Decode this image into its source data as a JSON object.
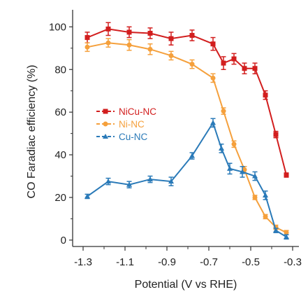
{
  "chart_data": {
    "type": "line",
    "title": "",
    "xlabel": "Potential (V vs RHE)",
    "ylabel": "CO Faradiac efficiency (%)",
    "xlim": [
      -1.35,
      -0.27
    ],
    "ylim": [
      -3,
      108
    ],
    "x_ticks": [
      -1.3,
      -1.1,
      -0.9,
      -0.7,
      -0.5,
      -0.3
    ],
    "x_tick_labels": [
      "-1.3",
      "-1.1",
      "-0.9",
      "-0.7",
      "-0.5",
      "-0.3"
    ],
    "y_ticks": [
      0,
      20,
      40,
      60,
      80,
      100
    ],
    "y_tick_labels": [
      "0",
      "20",
      "40",
      "60",
      "80",
      "100"
    ],
    "legend_position": "center-left",
    "series": [
      {
        "name": "NiCu-NC",
        "color": "#d21e1e",
        "marker": "square",
        "x": [
          -1.28,
          -1.18,
          -1.08,
          -0.98,
          -0.88,
          -0.78,
          -0.68,
          -0.63,
          -0.58,
          -0.53,
          -0.48,
          -0.43,
          -0.38,
          -0.33
        ],
        "y": [
          95,
          99,
          97.5,
          97,
          94.5,
          96,
          92,
          83,
          85,
          80.5,
          80.5,
          68,
          49.5,
          30.5
        ],
        "error": [
          2.5,
          3,
          2.5,
          2.5,
          3,
          2.5,
          3,
          3,
          2.5,
          2.5,
          2.5,
          2,
          1.5,
          1
        ]
      },
      {
        "name": "Ni-NC",
        "color": "#f5a03c",
        "marker": "circle",
        "x": [
          -1.28,
          -1.18,
          -1.08,
          -0.98,
          -0.88,
          -0.78,
          -0.68,
          -0.63,
          -0.58,
          -0.53,
          -0.48,
          -0.43,
          -0.38,
          -0.33
        ],
        "y": [
          90.5,
          92.5,
          91.5,
          89.5,
          86.5,
          82.5,
          76,
          60.5,
          45,
          33,
          20,
          11,
          6,
          3.5
        ],
        "error": [
          2,
          2,
          2.5,
          2.5,
          2,
          2,
          2,
          1.5,
          1.5,
          1.5,
          1,
          1,
          1,
          1
        ]
      },
      {
        "name": "Cu-NC",
        "color": "#2a7ab8",
        "marker": "triangle",
        "x": [
          -1.28,
          -1.18,
          -1.08,
          -0.98,
          -0.88,
          -0.78,
          -0.68,
          -0.64,
          -0.6,
          -0.54,
          -0.48,
          -0.43,
          -0.38,
          -0.33
        ],
        "y": [
          20.5,
          27.5,
          26,
          28.5,
          27.5,
          39.5,
          55,
          43,
          33.5,
          32,
          30,
          21,
          4.5,
          1.5
        ],
        "error": [
          1,
          1.5,
          1.5,
          1.5,
          2,
          1.5,
          2,
          2,
          2.5,
          2.5,
          2,
          2,
          1,
          1
        ]
      }
    ]
  }
}
